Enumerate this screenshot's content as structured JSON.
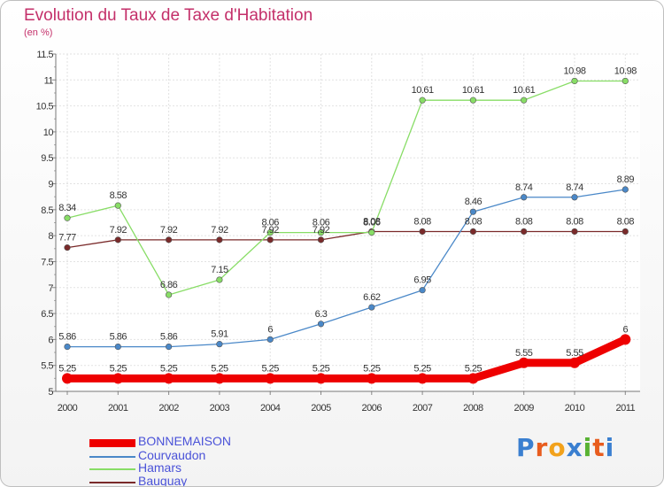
{
  "title": "Evolution du Taux de Taxe d'Habitation",
  "subtitle": "(en %)",
  "logo": {
    "text": "Proxiti",
    "colors": [
      "#3a7fd0",
      "#e85c1e",
      "#f2a21c",
      "#3a7fd0",
      "#58b233",
      "#e85c1e",
      "#3a7fd0"
    ]
  },
  "chart_data": {
    "type": "line",
    "title": "Evolution du Taux de Taxe d'Habitation",
    "ylabel": "(en %)",
    "xlabel": "",
    "ylim": [
      5,
      11.5
    ],
    "yticks": [
      "5",
      "5.5",
      "6",
      "6.5",
      "7",
      "7.5",
      "8",
      "8.5",
      "9",
      "9.5",
      "10",
      "10.5",
      "11",
      "11.5"
    ],
    "ytick_values": [
      5,
      5.5,
      6,
      6.5,
      7,
      7.5,
      8,
      8.5,
      9,
      9.5,
      10,
      10.5,
      11,
      11.5
    ],
    "categories": [
      "2000",
      "2001",
      "2002",
      "2003",
      "2004",
      "2005",
      "2006",
      "2007",
      "2008",
      "2009",
      "2010",
      "2011"
    ],
    "grid": true,
    "legend_position": "bottom-left",
    "series": [
      {
        "name": "BONNEMAISON",
        "color": "#ee0000",
        "values": [
          5.25,
          5.25,
          5.25,
          5.25,
          5.25,
          5.25,
          5.25,
          5.25,
          5.25,
          5.55,
          5.55,
          6
        ],
        "labels": [
          "5.25",
          "5.25",
          "5.25",
          "5.25",
          "5.25",
          "5.25",
          "5.25",
          "5.25",
          "5.25",
          "5.55",
          "5.55",
          "6"
        ]
      },
      {
        "name": "Courvaudon",
        "color": "#4a88c8",
        "values": [
          5.86,
          5.86,
          5.86,
          5.91,
          6,
          6.3,
          6.62,
          6.95,
          8.46,
          8.74,
          8.74,
          8.89
        ],
        "labels": [
          "5.86",
          "5.86",
          "5.86",
          "5.91",
          "6",
          "6.3",
          "6.62",
          "6.95",
          "8.46",
          "8.74",
          "8.74",
          "8.89"
        ]
      },
      {
        "name": "Hamars",
        "color": "#88dd66",
        "values": [
          8.34,
          8.58,
          6.86,
          7.15,
          8.06,
          8.06,
          8.06,
          10.61,
          10.61,
          10.61,
          10.98,
          10.98
        ],
        "labels": [
          "8.34",
          "8.58",
          "6.86",
          "7.15",
          "8.06",
          "8.06",
          "8.06",
          "10.61",
          "10.61",
          "10.61",
          "10.98",
          "10.98"
        ]
      },
      {
        "name": "Bauquay",
        "color": "#7a2a2a",
        "values": [
          7.77,
          7.92,
          7.92,
          7.92,
          7.92,
          7.92,
          8.08,
          8.08,
          8.08,
          8.08,
          8.08,
          8.08
        ],
        "labels": [
          "7.77",
          "7.92",
          "7.92",
          "7.92",
          "7.92",
          "7.92",
          "8.08",
          "8.08",
          "8.08",
          "8.08",
          "8.08",
          "8.08"
        ]
      }
    ]
  }
}
